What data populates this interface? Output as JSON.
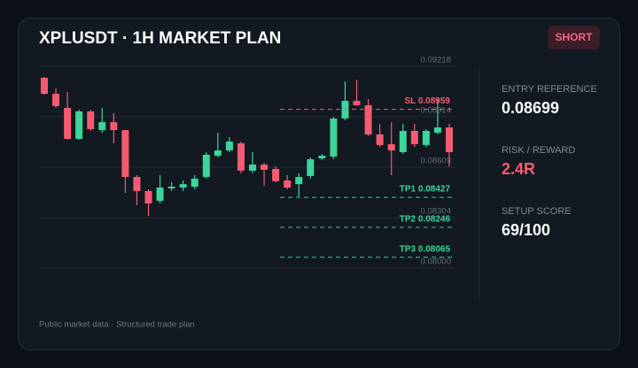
{
  "header": {
    "title": "XPLUSDT · 1H MARKET PLAN",
    "badge": "SHORT"
  },
  "chart_data": {
    "type": "candlestick",
    "ylim": [
      0.08,
      0.09218
    ],
    "yticks": [
      {
        "value": 0.08,
        "label": "0.08000"
      },
      0.08304,
      0.08609,
      0.08914,
      0.09218
    ],
    "grid": true,
    "up_color": "#3ad69a",
    "down_color": "#f45b71",
    "open": [
      0.09149,
      0.09052,
      0.08967,
      0.0878,
      0.08946,
      0.08833,
      0.08881,
      0.08833,
      0.0855,
      0.08465,
      0.08406,
      0.08481,
      0.08486,
      0.08491,
      0.0855,
      0.08678,
      0.0871,
      0.08753,
      0.08588,
      0.08625,
      0.08598,
      0.08529,
      0.08507,
      0.08556,
      0.08662,
      0.08673,
      0.08903,
      0.0901,
      0.08983,
      0.08807,
      0.08748,
      0.087,
      0.08828,
      0.08743,
      0.08817,
      0.08849
    ],
    "high": [
      0.09154,
      0.09084,
      0.09063,
      0.08956,
      0.08956,
      0.08967,
      0.08935,
      0.08833,
      0.08561,
      0.08475,
      0.08561,
      0.08518,
      0.08529,
      0.08561,
      0.087,
      0.08817,
      0.08791,
      0.08764,
      0.087,
      0.08636,
      0.08614,
      0.08561,
      0.08572,
      0.08668,
      0.08689,
      0.08913,
      0.09127,
      0.09138,
      0.0902,
      0.08871,
      0.08881,
      0.08871,
      0.08871,
      0.08839,
      0.0902,
      0.08871
    ],
    "low": [
      0.09047,
      0.08967,
      0.08775,
      0.08775,
      0.08828,
      0.08817,
      0.08753,
      0.08454,
      0.08379,
      0.08315,
      0.0839,
      0.08465,
      0.08465,
      0.08475,
      0.0854,
      0.08668,
      0.087,
      0.08572,
      0.08572,
      0.08497,
      0.08518,
      0.08475,
      0.08433,
      0.0854,
      0.08652,
      0.08657,
      0.08892,
      0.08978,
      0.08796,
      0.08732,
      0.08561,
      0.08689,
      0.08732,
      0.08732,
      0.08807,
      0.08614
    ],
    "close": [
      0.09052,
      0.08978,
      0.0878,
      0.08946,
      0.08839,
      0.08881,
      0.08833,
      0.0855,
      0.08465,
      0.0839,
      0.08486,
      0.08491,
      0.08507,
      0.0854,
      0.08684,
      0.0871,
      0.08764,
      0.08588,
      0.08625,
      0.08593,
      0.08524,
      0.08486,
      0.0855,
      0.08657,
      0.08678,
      0.08903,
      0.0901,
      0.08983,
      0.08807,
      0.08743,
      0.0871,
      0.08828,
      0.08748,
      0.08828,
      0.08849,
      0.087
    ],
    "levels": [
      {
        "value": 0.08959,
        "label": "SL 0.08959",
        "color": "#f45b71"
      },
      {
        "value": 0.08427,
        "label": "TP1 0.08427",
        "color": "#3ad69a"
      },
      {
        "value": 0.08246,
        "label": "TP2 0.08246",
        "color": "#3ad69a"
      },
      {
        "value": 0.08065,
        "label": "TP3 0.08065",
        "color": "#3ad69a"
      }
    ]
  },
  "stats": [
    {
      "label": "ENTRY REFERENCE",
      "value": "0.08699",
      "color": "#ffffff"
    },
    {
      "label": "RISK / REWARD",
      "value": "2.4R",
      "color": "#f45b71"
    },
    {
      "label": "SETUP SCORE",
      "value": "69/100",
      "color": "#ffffff"
    }
  ],
  "footer": "Public market data · Structured trade plan"
}
